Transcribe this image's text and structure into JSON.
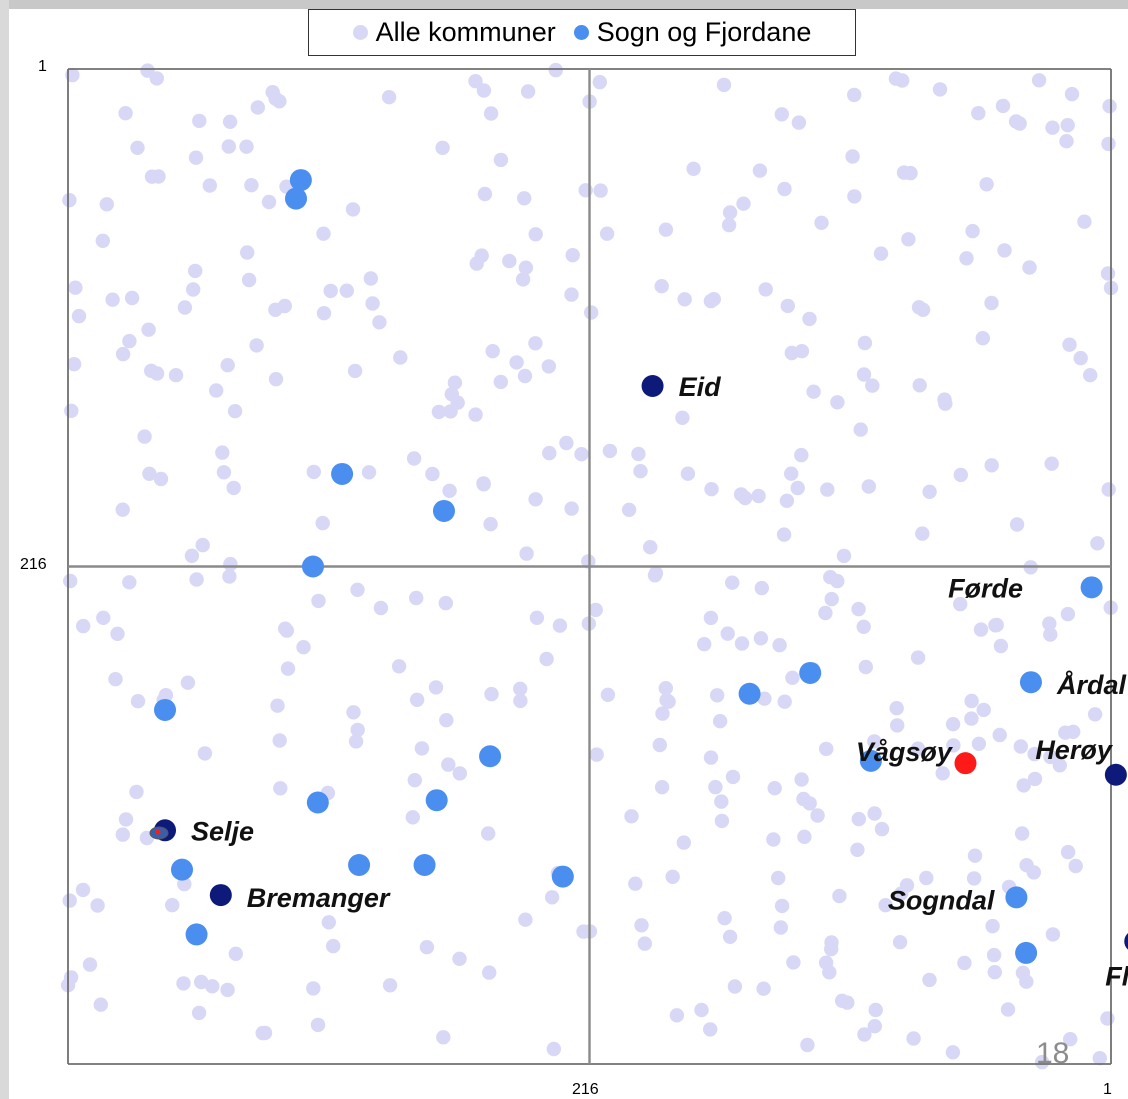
{
  "legend": {
    "items": [
      {
        "label": "Alle kommuner",
        "color": "#d8d8f6"
      },
      {
        "label": "Sogn og Fjordane",
        "color": "#4a8ef0"
      }
    ]
  },
  "slide_number": "18",
  "chart_data": {
    "type": "scatter",
    "title": "",
    "xlabel": "",
    "ylabel": "",
    "x_ticks": [
      "216",
      "1"
    ],
    "y_ticks": [
      "1",
      "216"
    ],
    "xlim": [
      1,
      431
    ],
    "ylim": [
      1,
      431
    ],
    "y_inverted": true,
    "grid": false,
    "legend_position": "top",
    "colors": {
      "all": "#d8d8f6",
      "sfj": "#4a8ef0",
      "labeled": "#0d1a7a",
      "highlight": "#ff1a1a"
    },
    "series": [
      {
        "name": "Sogn og Fjordane",
        "points": [
          {
            "x": 97,
            "y": 49
          },
          {
            "x": 95,
            "y": 57
          },
          {
            "x": 114,
            "y": 176
          },
          {
            "x": 156,
            "y": 192
          },
          {
            "x": 102,
            "y": 216
          },
          {
            "x": 41,
            "y": 278
          },
          {
            "x": 104,
            "y": 318
          },
          {
            "x": 153,
            "y": 317
          },
          {
            "x": 175,
            "y": 298
          },
          {
            "x": 48,
            "y": 347
          },
          {
            "x": 121,
            "y": 345
          },
          {
            "x": 148,
            "y": 345
          },
          {
            "x": 54,
            "y": 375
          },
          {
            "x": 205,
            "y": 350
          },
          {
            "x": 282,
            "y": 271
          },
          {
            "x": 307,
            "y": 262
          },
          {
            "x": 332,
            "y": 300
          },
          {
            "x": 392,
            "y": 359
          },
          {
            "x": 396,
            "y": 383
          },
          {
            "x": 398,
            "y": 266
          },
          {
            "x": 423,
            "y": 225
          }
        ]
      },
      {
        "name": "labeled",
        "points": [
          {
            "x": 242,
            "y": 138,
            "label": "Eid"
          },
          {
            "x": 41,
            "y": 330,
            "label": "Selje"
          },
          {
            "x": 64,
            "y": 358,
            "label": "Bremanger"
          },
          {
            "x": 403,
            "y": 225,
            "label": "Førde"
          },
          {
            "x": 398,
            "y": 266,
            "label": "Årdal"
          },
          {
            "x": 358,
            "y": 303,
            "label": "Vågsøy"
          },
          {
            "x": 433,
            "y": 306,
            "label": "Herøy"
          },
          {
            "x": 392,
            "y": 359,
            "label": "Sogndal"
          },
          {
            "x": 441,
            "y": 378,
            "label": "Flora"
          }
        ]
      },
      {
        "name": "highlight",
        "points": [
          {
            "x": 371,
            "y": 301
          }
        ]
      }
    ]
  }
}
